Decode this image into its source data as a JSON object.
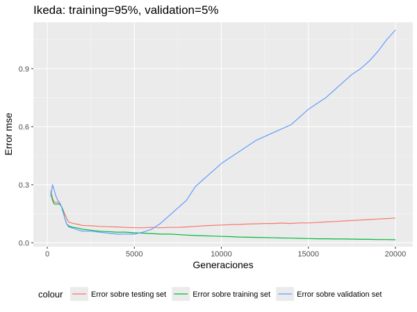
{
  "chart_data": {
    "type": "line",
    "title": "Ikeda: training=95%, validation=5%",
    "xlabel": "Generaciones",
    "ylabel": "Error mse",
    "xlim": [
      -800,
      21000
    ],
    "ylim": [
      -0.02,
      1.14
    ],
    "xticks": [
      0,
      5000,
      10000,
      15000,
      20000
    ],
    "yticks": [
      0.0,
      0.3,
      0.6,
      0.9
    ],
    "ytick_labels": [
      "0.0",
      "0.3",
      "0.6",
      "0.9"
    ],
    "xtick_labels": [
      "0",
      "5000",
      "10000",
      "15000",
      "20000"
    ],
    "grid": true,
    "panel_background": "#ebebeb",
    "legend": {
      "title": "colour",
      "position": "bottom"
    },
    "series": [
      {
        "name": "Error sobre testing set",
        "color": "#F8766D",
        "x": [
          200,
          300,
          400,
          500,
          600,
          700,
          800,
          900,
          1000,
          1100,
          1200,
          1300,
          1500,
          1800,
          2000,
          2500,
          3000,
          3500,
          4000,
          4500,
          5000,
          5500,
          6000,
          6500,
          7000,
          7500,
          8000,
          8500,
          9000,
          9500,
          10000,
          10500,
          11000,
          11500,
          12000,
          12500,
          13000,
          13500,
          14000,
          14500,
          15000,
          15500,
          16000,
          16500,
          17000,
          17500,
          18000,
          18500,
          19000,
          19500,
          20000
        ],
        "y": [
          0.27,
          0.23,
          0.21,
          0.21,
          0.21,
          0.2,
          0.19,
          0.17,
          0.15,
          0.13,
          0.11,
          0.105,
          0.1,
          0.095,
          0.09,
          0.088,
          0.085,
          0.083,
          0.082,
          0.08,
          0.078,
          0.078,
          0.08,
          0.078,
          0.08,
          0.08,
          0.082,
          0.085,
          0.088,
          0.09,
          0.092,
          0.094,
          0.095,
          0.097,
          0.098,
          0.1,
          0.1,
          0.102,
          0.1,
          0.103,
          0.103,
          0.105,
          0.108,
          0.11,
          0.113,
          0.115,
          0.118,
          0.12,
          0.123,
          0.125,
          0.128
        ]
      },
      {
        "name": "Error sobre training set",
        "color": "#00BA38",
        "x": [
          200,
          300,
          400,
          500,
          600,
          700,
          800,
          900,
          1000,
          1100,
          1200,
          1300,
          1500,
          1800,
          2000,
          2500,
          3000,
          3500,
          4000,
          4500,
          5000,
          5500,
          6000,
          6500,
          7000,
          7500,
          8000,
          8500,
          9000,
          9500,
          10000,
          10500,
          11000,
          11500,
          12000,
          12500,
          13000,
          13500,
          14000,
          14500,
          15000,
          15500,
          16000,
          16500,
          17000,
          17500,
          18000,
          18500,
          19000,
          19500,
          20000
        ],
        "y": [
          0.26,
          0.22,
          0.2,
          0.2,
          0.2,
          0.2,
          0.19,
          0.17,
          0.13,
          0.1,
          0.09,
          0.085,
          0.08,
          0.075,
          0.07,
          0.065,
          0.06,
          0.058,
          0.055,
          0.055,
          0.052,
          0.05,
          0.048,
          0.045,
          0.045,
          0.043,
          0.04,
          0.038,
          0.036,
          0.035,
          0.033,
          0.032,
          0.03,
          0.029,
          0.028,
          0.027,
          0.026,
          0.025,
          0.024,
          0.023,
          0.022,
          0.021,
          0.021,
          0.02,
          0.02,
          0.019,
          0.018,
          0.018,
          0.017,
          0.017,
          0.016
        ]
      },
      {
        "name": "Error sobre validation set",
        "color": "#619CFF",
        "x": [
          200,
          300,
          400,
          500,
          600,
          700,
          800,
          900,
          1000,
          1100,
          1200,
          1300,
          1500,
          1800,
          2000,
          2500,
          3000,
          3500,
          4000,
          4500,
          5000,
          5500,
          6000,
          6500,
          7000,
          7500,
          8000,
          8500,
          9000,
          9500,
          10000,
          10500,
          11000,
          11500,
          12000,
          12500,
          13000,
          13500,
          14000,
          14500,
          15000,
          15500,
          16000,
          16500,
          17000,
          17500,
          18000,
          18500,
          19000,
          19500,
          20000
        ],
        "y": [
          0.24,
          0.3,
          0.27,
          0.24,
          0.22,
          0.21,
          0.19,
          0.16,
          0.13,
          0.1,
          0.085,
          0.08,
          0.075,
          0.065,
          0.06,
          0.06,
          0.055,
          0.05,
          0.045,
          0.045,
          0.045,
          0.055,
          0.07,
          0.1,
          0.14,
          0.18,
          0.22,
          0.29,
          0.33,
          0.37,
          0.41,
          0.44,
          0.47,
          0.5,
          0.53,
          0.55,
          0.57,
          0.59,
          0.61,
          0.65,
          0.69,
          0.72,
          0.75,
          0.79,
          0.83,
          0.87,
          0.9,
          0.94,
          0.99,
          1.05,
          1.1
        ]
      }
    ]
  }
}
